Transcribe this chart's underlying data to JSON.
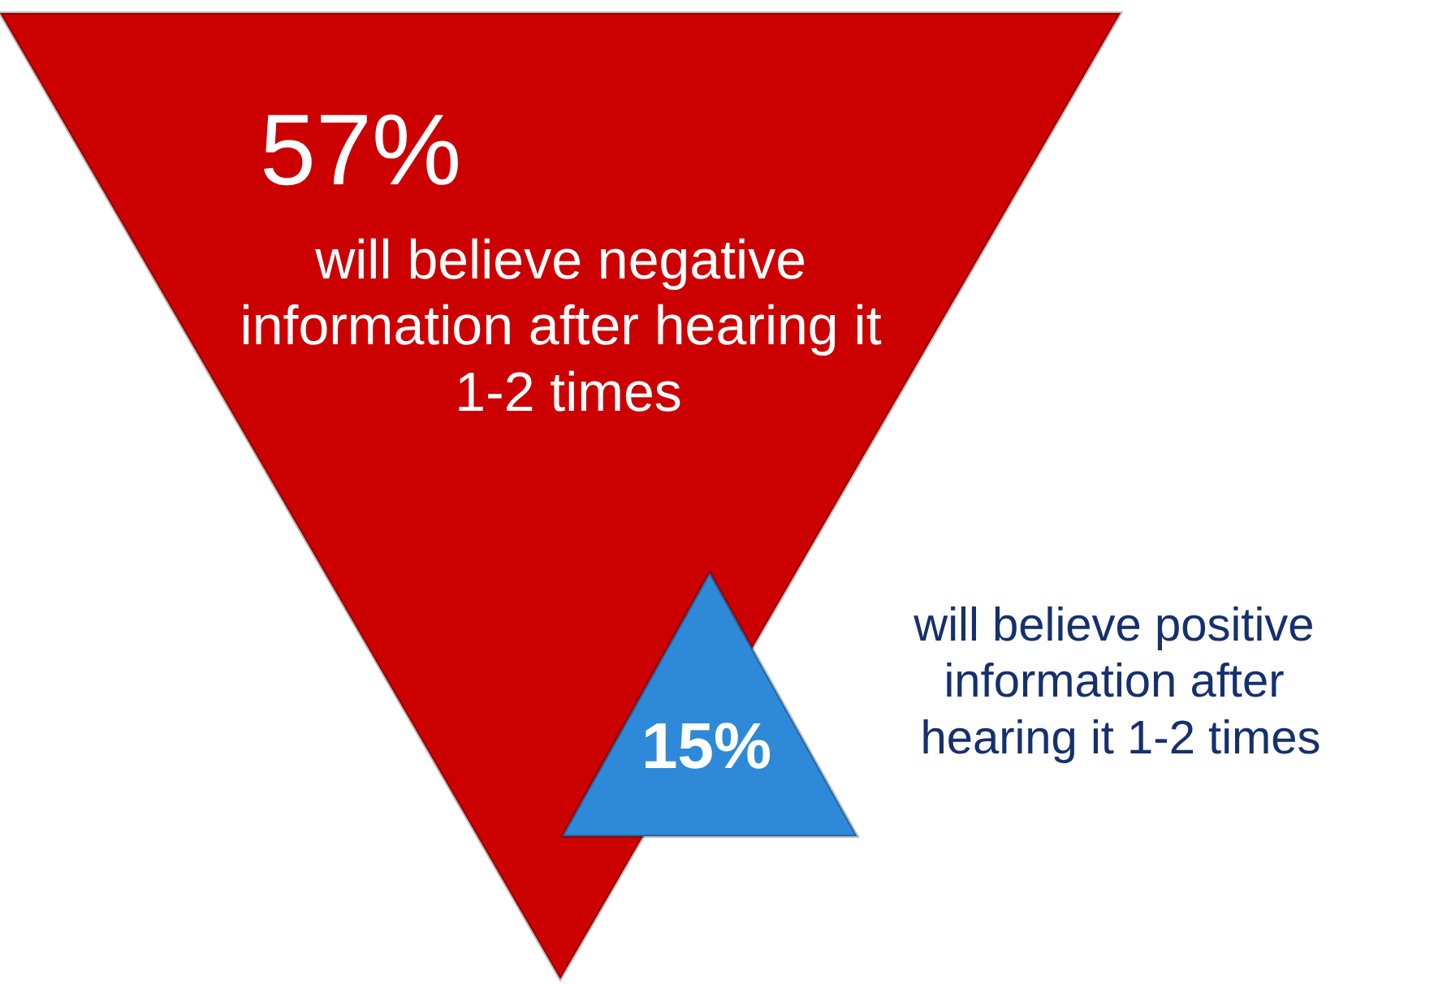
{
  "chart_data": {
    "type": "other",
    "categories": [
      "will believe negative information after hearing it 1-2 times",
      "will believe positive information after hearing it 1-2 times"
    ],
    "values": [
      57,
      15
    ],
    "value_labels": [
      "57%",
      "15%"
    ],
    "colors": [
      "#cc0000",
      "#2e8ad8"
    ]
  }
}
